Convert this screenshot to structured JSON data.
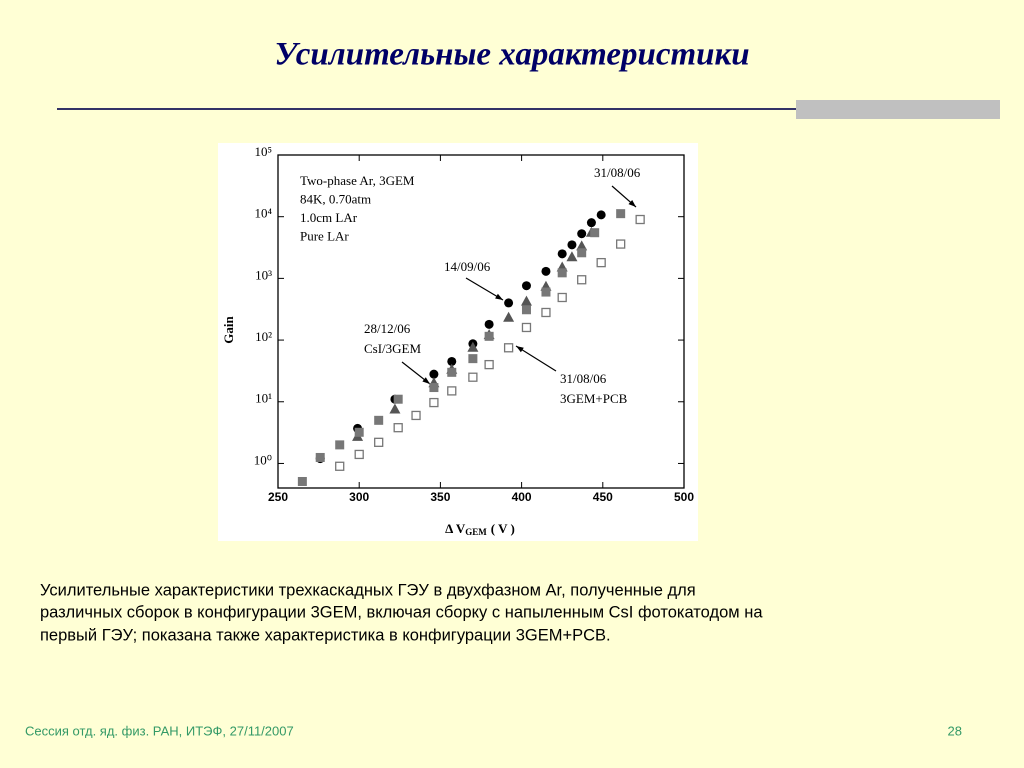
{
  "slide_title": "Усилительные характеристики",
  "caption": [
    "Усилительные характеристики трехкаскадных ГЭУ в двухфазном Ar, полученные для",
    "различных сборок в конфигурации 3GEM, включая сборку с напыленным CsI фотокатодом на",
    "первый ГЭУ; показана также характеристика в конфигурации 3GEM+PCB."
  ],
  "footer": "Сессия отд. яд. физ. РАН, ИТЭФ, 27/11/2007",
  "page_number": "28",
  "chart_data": {
    "type": "scatter",
    "log_y": true,
    "xlim": [
      250,
      500
    ],
    "xticks": [
      250,
      300,
      350,
      400,
      450,
      500
    ],
    "ylim": [
      0.4,
      100000
    ],
    "yticks": [
      {
        "value": 1,
        "label": "10⁰"
      },
      {
        "value": 10,
        "label": "10¹"
      },
      {
        "value": 100,
        "label": "10²"
      },
      {
        "value": 1000,
        "label": "10³"
      },
      {
        "value": 10000,
        "label": "10⁴"
      },
      {
        "value": 100000,
        "label": "10⁵"
      }
    ],
    "xlabel": [
      "Δ V",
      "GEM",
      "( V )"
    ],
    "ylabel": "Gain",
    "info": [
      "Two-phase Ar, 3GEM",
      "84K, 0.70atm",
      "1.0cm LAr",
      "Pure LAr"
    ],
    "annotations": [
      [
        "31/08/06"
      ],
      [
        "14/09/06"
      ],
      [
        "28/12/06",
        "CsI/3GEM"
      ],
      [
        "31/08/06",
        "3GEM+PCB"
      ]
    ],
    "series": [
      {
        "marker": "circle",
        "color": "#000000",
        "x": [
          276,
          299,
          322,
          346,
          357,
          370,
          380,
          392,
          403,
          415,
          425,
          431,
          437,
          443,
          449
        ],
        "values": [
          1.2,
          3.7,
          11,
          28,
          45,
          87,
          180,
          400,
          760,
          1300,
          2500,
          3500,
          5300,
          8000,
          10700
        ]
      },
      {
        "marker": "triangle",
        "color": "#555555",
        "x": [
          299,
          322,
          346,
          357,
          370,
          380,
          392,
          403,
          415,
          425,
          431,
          437,
          443
        ],
        "values": [
          2.7,
          7.5,
          20,
          33,
          75,
          120,
          230,
          420,
          730,
          1500,
          2200,
          3300,
          5500
        ]
      },
      {
        "marker": "square",
        "color": "#777777",
        "x": [
          265,
          276,
          288,
          300,
          312,
          324,
          346,
          357,
          370,
          380,
          403,
          415,
          425,
          437,
          445,
          461
        ],
        "values": [
          0.51,
          1.25,
          2,
          3.2,
          5,
          11,
          17,
          30,
          50,
          115,
          310,
          600,
          1230,
          2600,
          5500,
          11200
        ]
      },
      {
        "marker": "open-square",
        "color": "#777777",
        "x": [
          288,
          300,
          312,
          324,
          335,
          346,
          357,
          370,
          380,
          392,
          403,
          415,
          425,
          437,
          449,
          461,
          473
        ],
        "values": [
          0.9,
          1.4,
          2.2,
          3.8,
          6,
          9.7,
          15,
          25,
          40,
          75,
          160,
          280,
          490,
          950,
          1800,
          3600,
          9000
        ]
      }
    ]
  }
}
